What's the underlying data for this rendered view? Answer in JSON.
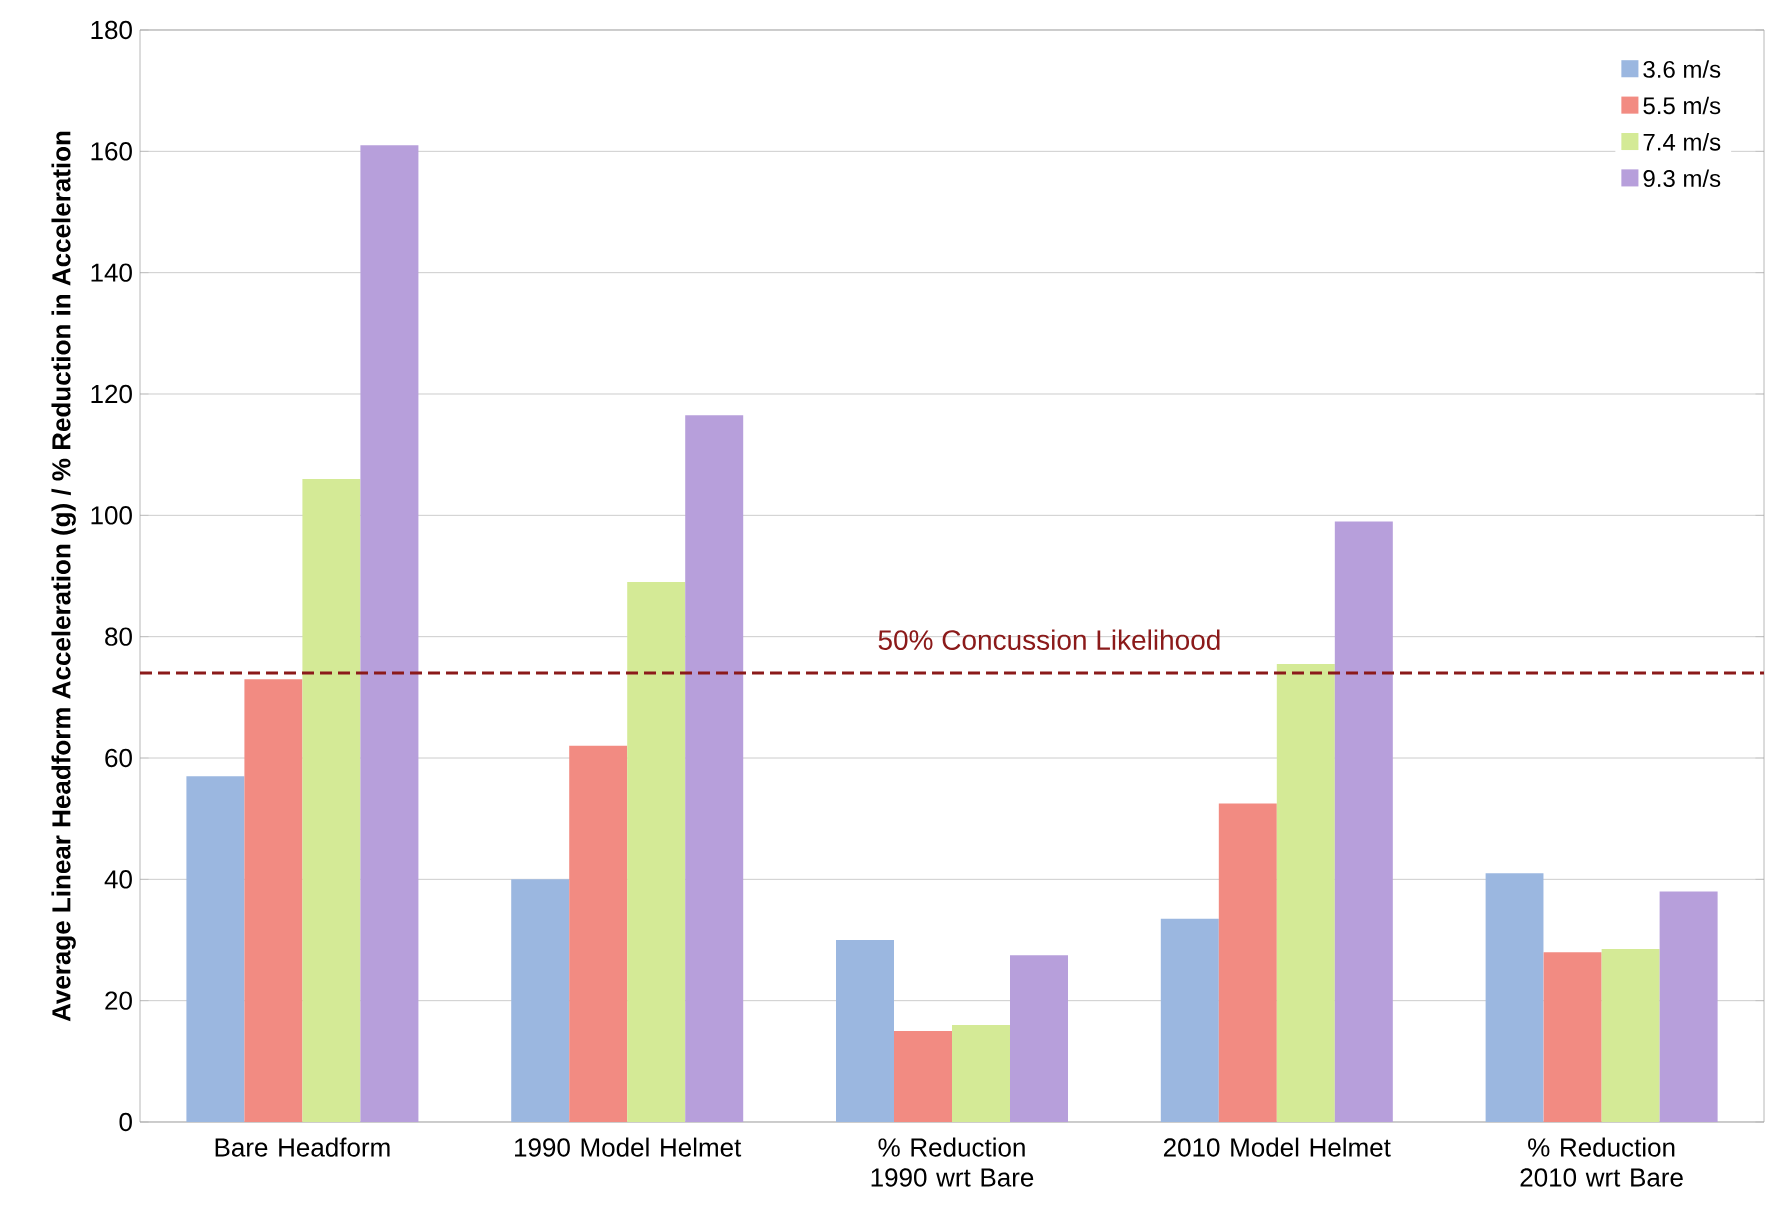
{
  "chart_data": {
    "type": "bar",
    "ylabel": "Average Linear Headform Acceleration (g) / % Reduction in Acceleration",
    "categories": [
      "Bare Headform",
      "1990 Model Helmet",
      "% Reduction 1990 wrt Bare",
      "2010 Model Helmet",
      "% Reduction 2010 wrt Bare"
    ],
    "series": [
      {
        "name": "3.6 m/s",
        "color": "#9bb7e0",
        "values": [
          57,
          40,
          30,
          33.5,
          41
        ]
      },
      {
        "name": "5.5 m/s",
        "color": "#f28b82",
        "values": [
          73,
          62,
          15,
          52.5,
          28
        ]
      },
      {
        "name": "7.4 m/s",
        "color": "#d4ea96",
        "values": [
          106,
          89,
          16,
          75.5,
          28.5
        ]
      },
      {
        "name": "9.3 m/s",
        "color": "#b79fdb",
        "values": [
          161,
          116.5,
          27.5,
          99,
          38
        ]
      }
    ],
    "ylim": [
      0,
      180
    ],
    "yticks": [
      0,
      20,
      40,
      60,
      80,
      100,
      120,
      140,
      160,
      180
    ],
    "grid": "y",
    "legend": "top right",
    "ref_lines": [
      {
        "axis": "y",
        "value": 74,
        "label": "50% Concussion Likelihood",
        "color": "#8b1a1a",
        "line_style": "dashed"
      }
    ]
  }
}
